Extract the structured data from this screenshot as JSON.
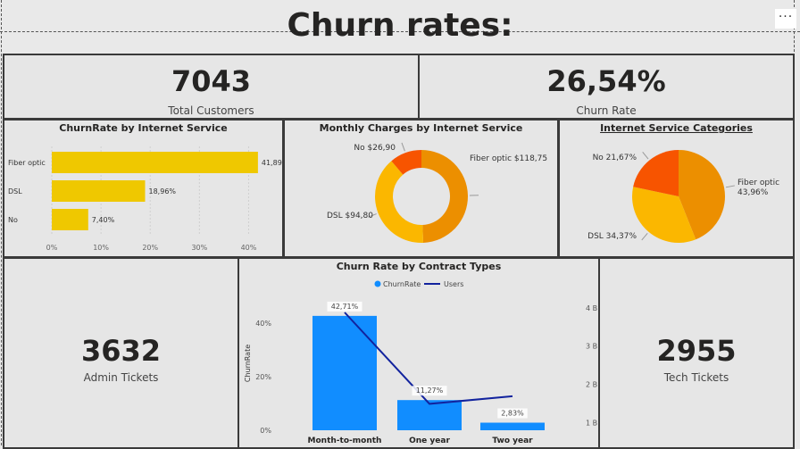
{
  "header": {
    "title": "Churn rates:",
    "menu_label": "···"
  },
  "kpis": {
    "total_customers": {
      "value": "7043",
      "label": "Total Customers"
    },
    "churn_rate": {
      "value": "26,54%",
      "label": "Churn Rate"
    },
    "admin_tickets": {
      "value": "3632",
      "label": "Admin Tickets"
    },
    "tech_tickets": {
      "value": "2955",
      "label": "Tech Tickets"
    }
  },
  "colors": {
    "yellow": "#efc800",
    "orange": "#ec8f00",
    "amber": "#fbb700",
    "red_orange": "#f75400",
    "blue": "#118dff",
    "navy": "#12239e"
  },
  "chart_data": [
    {
      "type": "bar",
      "title": "ChurnRate by Internet Service",
      "orientation": "horizontal",
      "categories": [
        "Fiber optic",
        "DSL",
        "No"
      ],
      "values": [
        41.89,
        18.96,
        7.4
      ],
      "value_labels": [
        "41,89%",
        "18,96%",
        "7,40%"
      ],
      "x_ticks": [
        "0%",
        "10%",
        "20%",
        "30%",
        "40%"
      ],
      "xlim": [
        0,
        43
      ]
    },
    {
      "type": "pie",
      "variant": "donut",
      "title": "Monthly Charges by Internet Service",
      "labels": [
        "Fiber optic",
        "DSL",
        "No"
      ],
      "values": [
        118.75,
        94.8,
        26.9
      ],
      "value_labels": [
        "$118,75",
        "$94,80",
        "$26,90"
      ]
    },
    {
      "type": "pie",
      "title": "Internet Service Categories",
      "labels": [
        "Fiber optic",
        "DSL",
        "No"
      ],
      "values": [
        43.96,
        34.37,
        21.67
      ],
      "value_labels": [
        "43,96%",
        "34,37%",
        "21,67%"
      ]
    },
    {
      "type": "bar",
      "title": "Churn Rate by Contract Types",
      "categories": [
        "Month-to-month",
        "One year",
        "Two year"
      ],
      "series": [
        {
          "name": "ChurnRate",
          "values": [
            42.71,
            11.27,
            2.83
          ]
        },
        {
          "name": "Users",
          "type": "line",
          "axis": "secondary",
          "values": [
            3.88,
            1.49,
            1.69
          ]
        }
      ],
      "value_labels": [
        "42,71%",
        "11,27%",
        "2,83%"
      ],
      "ylabel": "ChurnRate",
      "y_ticks": [
        "0%",
        "20%",
        "40%"
      ],
      "ylim": [
        0,
        50
      ],
      "y2_ticks": [
        "1 B",
        "2 B",
        "3 B",
        "4 B"
      ],
      "y2lim": [
        0.8,
        4.3
      ]
    }
  ]
}
